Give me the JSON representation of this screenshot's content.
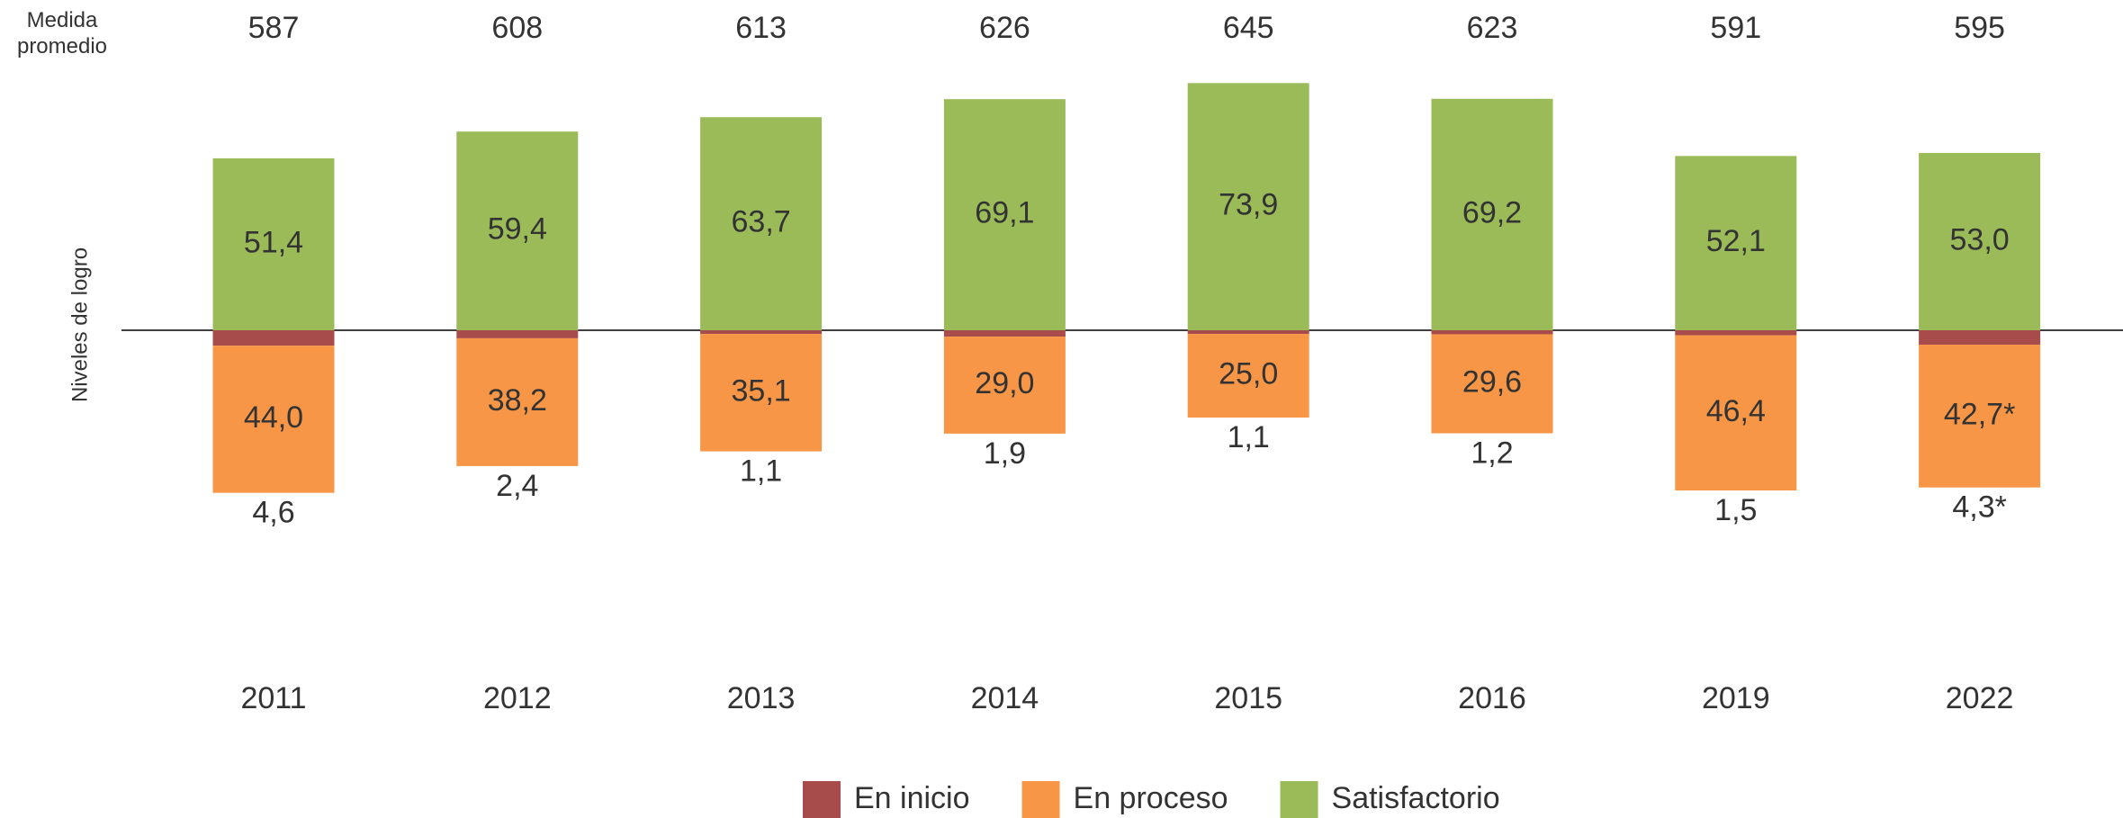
{
  "chart_data": {
    "type": "diverging_stacked_bar",
    "y_axis_label": "Niveles de logro",
    "mean_label": "Medida promedio",
    "mean_values": [
      587,
      608,
      613,
      626,
      645,
      623,
      591,
      595
    ],
    "categories": [
      "2011",
      "2012",
      "2013",
      "2014",
      "2015",
      "2016",
      "2019",
      "2022"
    ],
    "series": [
      {
        "name": "En inicio",
        "color": "#a84b4b",
        "direction": "down",
        "values": [
          4.6,
          2.4,
          1.1,
          1.9,
          1.1,
          1.2,
          1.5,
          4.3
        ],
        "value_labels": [
          "4,6",
          "2,4",
          "1,1",
          "1,9",
          "1,1",
          "1,2",
          "1,5",
          "4,3*"
        ]
      },
      {
        "name": "En proceso",
        "color": "#f79646",
        "direction": "down",
        "values": [
          44.0,
          38.2,
          35.1,
          29.0,
          25.0,
          29.6,
          46.4,
          42.7
        ],
        "value_labels": [
          "44,0",
          "38,2",
          "35,1",
          "29,0",
          "25,0",
          "29,6",
          "46,4",
          "42,7*"
        ]
      },
      {
        "name": "Satisfactorio",
        "color": "#9bbb59",
        "direction": "up",
        "values": [
          51.4,
          59.4,
          63.7,
          69.1,
          73.9,
          69.2,
          52.1,
          53.0
        ],
        "value_labels": [
          "51,4",
          "59,4",
          "63,7",
          "69,1",
          "73,9",
          "69,2",
          "52,1",
          "53,0"
        ]
      }
    ],
    "legend": "bottom"
  }
}
